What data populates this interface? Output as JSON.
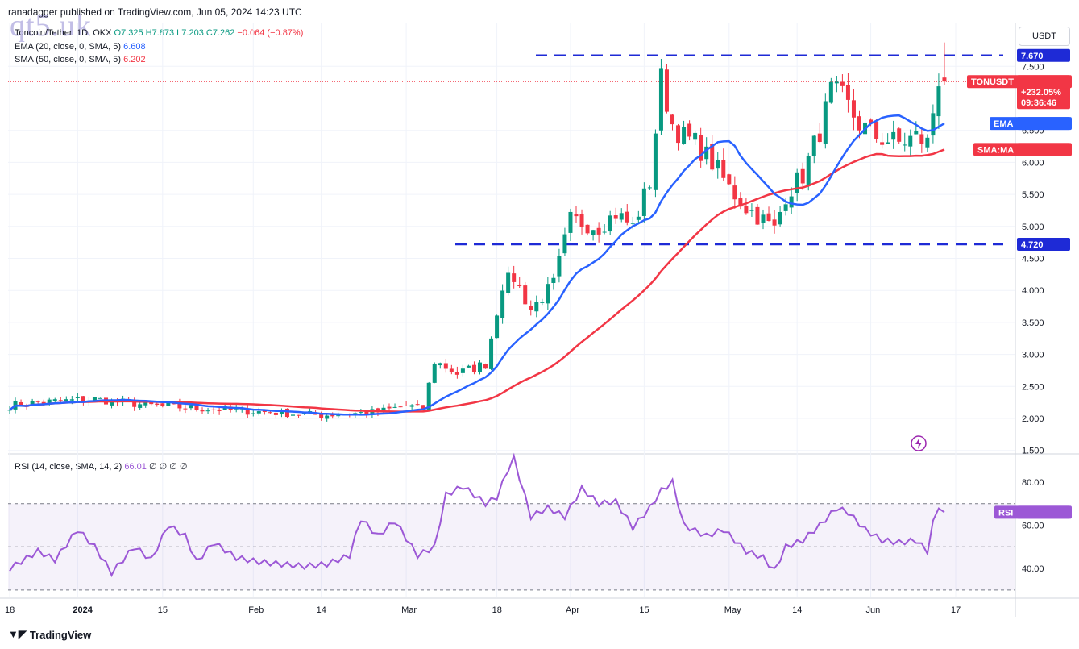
{
  "publisher": "ranadagger published on TradingView.com, Jun 05, 2024 14:23 UTC",
  "watermark": "qt5.uk",
  "legend": {
    "symbol": "Toncoin/Tether, 1D, OKX",
    "ohlc": "O7.325 H7.873 L7.203 C7.262",
    "change": "−0.064 (−0.87%)",
    "ema_label": "EMA (20, close, 0, SMA, 5)",
    "ema_value": "6.608",
    "sma_label": "SMA (50, close, 0, SMA, 5)",
    "sma_value": "6.202",
    "rsi_label": "RSI (14, close, SMA, 14, 2)",
    "rsi_value": "66.01",
    "rsi_extra": "∅ ∅ ∅ ∅"
  },
  "currency_button": "USDT",
  "footer_logo": "TradingView",
  "colors": {
    "up": "#089981",
    "down": "#f23645",
    "ema": "#2962ff",
    "sma": "#f23645",
    "rsi": "#9c58d6",
    "level": "#1e2ad6"
  },
  "tags": {
    "resistance": "7.670",
    "support": "4.720",
    "symbol": "TONUSDT",
    "price": "7.262",
    "pct": "+232.05%",
    "countdown": "09:36:46",
    "ema": "EMA",
    "ema_value": "6.608",
    "sma": "SMA:MA",
    "sma_value": "6.202",
    "rsi": "RSI",
    "rsi_value": "66.01"
  },
  "chart_data": {
    "type": "candlestick",
    "price_axis_ticks": [
      1.5,
      2.0,
      2.5,
      3.0,
      3.5,
      4.0,
      4.5,
      5.0,
      5.5,
      6.0,
      6.5,
      7.5
    ],
    "price_axis_labels": [
      "1.500",
      "2.000",
      "2.500",
      "3.000",
      "3.500",
      "4.000",
      "4.500",
      "5.000",
      "5.500",
      "6.000",
      "6.500",
      "7.500"
    ],
    "ylim": [
      1.5,
      8.0
    ],
    "rsi_axis_ticks": [
      40,
      60,
      80
    ],
    "rsi_axis_labels": [
      "40.00",
      "60.00",
      "80.00"
    ],
    "rsi_band": [
      30,
      70
    ],
    "x_labels": [
      "18",
      "2024",
      "15",
      "Feb",
      "14",
      "Mar",
      "18",
      "Apr",
      "15",
      "May",
      "14",
      "Jun",
      "17"
    ],
    "horizontal_levels": [
      7.67,
      4.72
    ],
    "anchors": [
      [
        0,
        2.2
      ],
      [
        5,
        2.25
      ],
      [
        15,
        2.3
      ],
      [
        25,
        2.2
      ],
      [
        35,
        2.15
      ],
      [
        45,
        2.1
      ],
      [
        55,
        2.05
      ],
      [
        65,
        2.1
      ],
      [
        70,
        2.2
      ],
      [
        73,
        2.15
      ],
      [
        75,
        2.9
      ],
      [
        79,
        2.7
      ],
      [
        84,
        2.85
      ],
      [
        87,
        4.1
      ],
      [
        89,
        4.2
      ],
      [
        92,
        3.7
      ],
      [
        96,
        4.1
      ],
      [
        99,
        5.1
      ],
      [
        104,
        5.0
      ],
      [
        107,
        5.2
      ],
      [
        110,
        5.0
      ],
      [
        113,
        5.7
      ],
      [
        115,
        7.3
      ],
      [
        117,
        6.6
      ],
      [
        119,
        6.4
      ],
      [
        121,
        6.3
      ],
      [
        124,
        6.0
      ],
      [
        127,
        5.6
      ],
      [
        130,
        5.3
      ],
      [
        133,
        5.1
      ],
      [
        135,
        4.95
      ],
      [
        137,
        5.5
      ],
      [
        140,
        5.8
      ],
      [
        143,
        6.5
      ],
      [
        145,
        7.1
      ],
      [
        147,
        7.0
      ],
      [
        150,
        6.6
      ],
      [
        153,
        6.4
      ],
      [
        155,
        6.35
      ],
      [
        157,
        6.3
      ],
      [
        160,
        6.4
      ],
      [
        162,
        6.3
      ],
      [
        163,
        6.8
      ],
      [
        164,
        7.32
      ],
      [
        165,
        7.26
      ]
    ],
    "last_candle": {
      "open": 7.325,
      "high": 7.873,
      "low": 7.203,
      "close": 7.262
    },
    "ema20_last": 6.608,
    "sma50_last": 6.202,
    "rsi_anchors": [
      [
        0,
        40
      ],
      [
        5,
        48
      ],
      [
        8,
        44
      ],
      [
        12,
        58
      ],
      [
        15,
        50
      ],
      [
        18,
        38
      ],
      [
        22,
        50
      ],
      [
        25,
        44
      ],
      [
        28,
        60
      ],
      [
        31,
        55
      ],
      [
        33,
        43
      ],
      [
        36,
        52
      ],
      [
        40,
        45
      ],
      [
        44,
        43
      ],
      [
        48,
        42
      ],
      [
        52,
        41
      ],
      [
        56,
        42
      ],
      [
        60,
        46
      ],
      [
        62,
        63
      ],
      [
        65,
        55
      ],
      [
        68,
        62
      ],
      [
        72,
        46
      ],
      [
        75,
        50
      ],
      [
        77,
        74
      ],
      [
        80,
        78
      ],
      [
        84,
        70
      ],
      [
        86,
        73
      ],
      [
        88,
        86
      ],
      [
        89,
        91
      ],
      [
        92,
        64
      ],
      [
        95,
        68
      ],
      [
        98,
        64
      ],
      [
        101,
        77
      ],
      [
        104,
        70
      ],
      [
        107,
        71
      ],
      [
        110,
        59
      ],
      [
        113,
        68
      ],
      [
        115,
        76
      ],
      [
        117,
        80
      ],
      [
        119,
        60
      ],
      [
        123,
        55
      ],
      [
        126,
        58
      ],
      [
        130,
        48
      ],
      [
        133,
        45
      ],
      [
        135,
        39
      ],
      [
        137,
        50
      ],
      [
        140,
        53
      ],
      [
        143,
        60
      ],
      [
        146,
        68
      ],
      [
        148,
        66
      ],
      [
        151,
        58
      ],
      [
        154,
        53
      ],
      [
        157,
        52
      ],
      [
        160,
        53
      ],
      [
        162,
        48
      ],
      [
        163,
        61
      ],
      [
        164,
        69
      ],
      [
        165,
        66
      ]
    ]
  }
}
